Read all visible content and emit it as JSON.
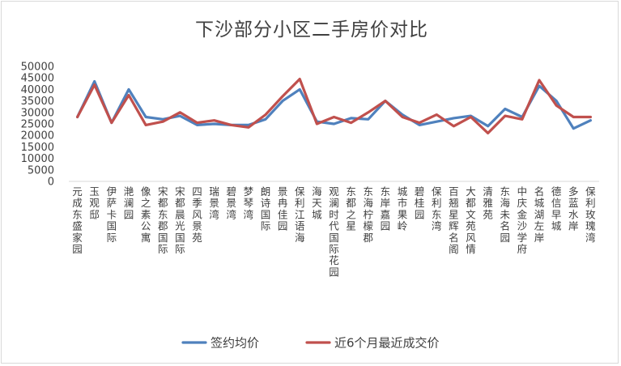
{
  "chart_data": {
    "type": "line",
    "title": "下沙部分小区二手房价对比",
    "xlabel": "",
    "ylabel": "",
    "ylim": [
      0,
      50000
    ],
    "yticks": [
      0,
      5000,
      10000,
      15000,
      20000,
      25000,
      30000,
      35000,
      40000,
      45000,
      50000
    ],
    "grid": false,
    "legend_position": "bottom",
    "categories": [
      "元成东盛家园",
      "玉观邸",
      "伊萨卡国际",
      "滟澜园",
      "像之素公寓",
      "宋都东郡国际",
      "宋都晨光国际",
      "四季风景苑",
      "瑞景湾",
      "碧景湾",
      "梦琴湾",
      "朗诗国际",
      "景冉佳园",
      "保利江语海",
      "海天城",
      "观澜时代国际花园",
      "东都之星",
      "东海柠檬郡",
      "东岸嘉园",
      "城市果岭",
      "碧桂园",
      "保利东湾",
      "百翘星辉名阁",
      "大都文苑风情",
      "清雅苑",
      "东海未名园",
      "中庆金沙学府",
      "名城湖左岸",
      "德信早城",
      "多蓝水岸",
      "保利玫瑰湾"
    ],
    "series": [
      {
        "name": "签约均价",
        "color": "#4f81bd",
        "values": [
          28000,
          43500,
          25500,
          40000,
          28000,
          27000,
          28500,
          24500,
          25000,
          24500,
          24500,
          27000,
          35000,
          40000,
          26000,
          25000,
          27500,
          27000,
          35000,
          29000,
          24500,
          26000,
          27500,
          28500,
          24000,
          31500,
          28000,
          41500,
          35000,
          23000,
          26500
        ]
      },
      {
        "name": "近6个月最近成交价",
        "color": "#c0504d",
        "values": [
          28000,
          42000,
          25500,
          37500,
          24500,
          26000,
          30000,
          25500,
          26500,
          24500,
          23500,
          29000,
          37000,
          44500,
          25000,
          28000,
          25500,
          30000,
          35000,
          28000,
          25500,
          29000,
          24000,
          28000,
          21000,
          28500,
          27000,
          44000,
          33000,
          28000,
          28000
        ]
      }
    ]
  }
}
